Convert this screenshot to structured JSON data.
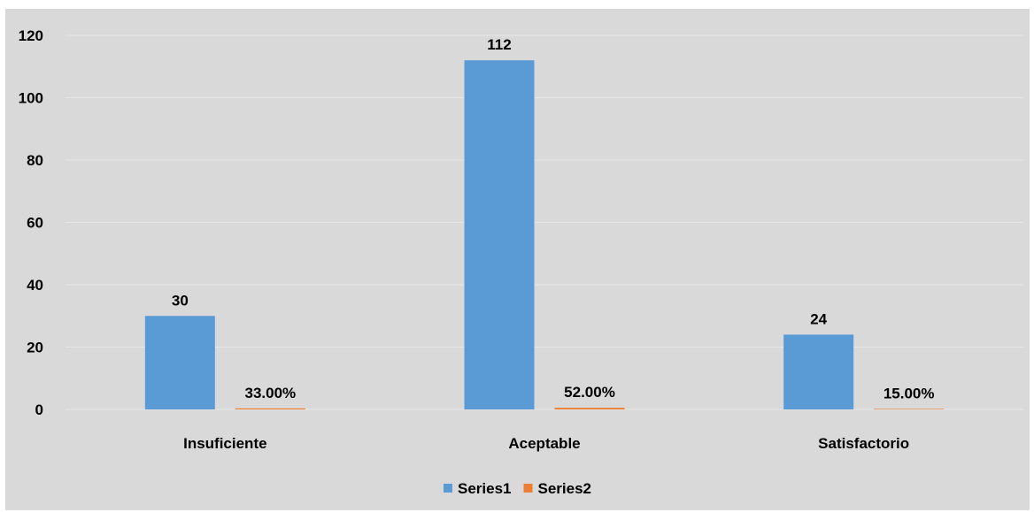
{
  "chart_data": {
    "type": "bar",
    "title": "",
    "xlabel": "",
    "ylabel": "",
    "categories": [
      "Insuficiente",
      "Aceptable",
      "Satisfactorio"
    ],
    "series": [
      {
        "name": "Series1",
        "values": [
          30,
          112,
          24
        ],
        "labels": [
          "30",
          "112",
          "24"
        ],
        "color": "#5b9bd5"
      },
      {
        "name": "Series2",
        "values": [
          0.33,
          0.52,
          0.15
        ],
        "labels": [
          "33.00%",
          "52.00%",
          "15.00%"
        ],
        "color": "#ed7d31"
      }
    ],
    "ylim": [
      0,
      120
    ],
    "yticks": [
      0,
      20,
      40,
      60,
      80,
      100,
      120
    ],
    "grid": true,
    "legend": "bottom",
    "background": "#d9d9d9",
    "grid_color": "#e6e6e6"
  }
}
